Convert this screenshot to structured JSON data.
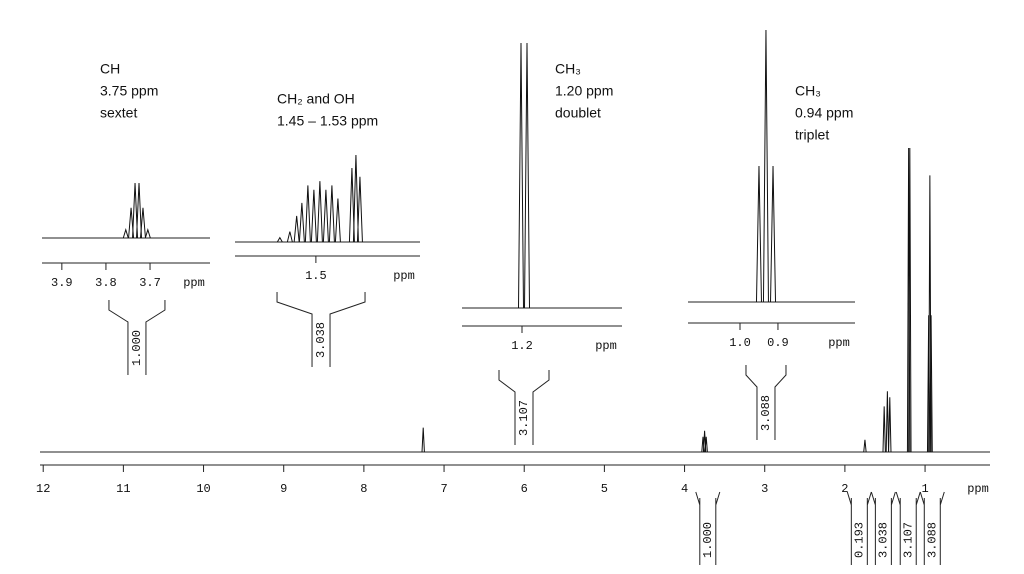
{
  "spectrum": {
    "axis_label": "ppm",
    "xlim": [
      12.04,
      0.19
    ],
    "xticks": [
      12,
      11,
      10,
      9,
      8,
      7,
      6,
      5,
      4,
      3,
      2,
      1
    ],
    "peaks": [
      {
        "x": 7.26,
        "height": 8
      },
      {
        "x": 3.77,
        "height": 5
      },
      {
        "x": 3.75,
        "height": 7
      },
      {
        "x": 3.73,
        "height": 5
      },
      {
        "x": 1.75,
        "height": 4
      },
      {
        "x": 1.51,
        "height": 15
      },
      {
        "x": 1.47,
        "height": 20
      },
      {
        "x": 1.44,
        "height": 18
      },
      {
        "x": 1.205,
        "height": 100
      },
      {
        "x": 1.19,
        "height": 100
      },
      {
        "x": 0.955,
        "height": 45
      },
      {
        "x": 0.94,
        "height": 91
      },
      {
        "x": 0.925,
        "height": 45
      }
    ],
    "integrals": [
      {
        "x": 3.71,
        "label": "1.000"
      },
      {
        "x": 1.82,
        "label": "0.193"
      },
      {
        "x": 1.52,
        "label": "3.038"
      },
      {
        "x": 1.21,
        "label": "3.107"
      },
      {
        "x": 0.91,
        "label": "3.088"
      }
    ]
  },
  "insets": [
    {
      "title": [
        "CH",
        "3.75 ppm",
        "sextet"
      ],
      "axis_label": "ppm",
      "xlim": [
        3.945,
        3.564
      ],
      "xticks": [
        3.9,
        3.8,
        3.7
      ],
      "integral": "1.000",
      "peaks": [
        {
          "x": 3.755,
          "height": 15
        },
        {
          "x": 3.743,
          "height": 55
        },
        {
          "x": 3.734,
          "height": 100
        },
        {
          "x": 3.725,
          "height": 100
        },
        {
          "x": 3.716,
          "height": 55
        },
        {
          "x": 3.705,
          "height": 15
        }
      ]
    },
    {
      "title": [
        "CH₂ and OH",
        "1.45 – 1.53 ppm"
      ],
      "axis_label": "ppm",
      "xlim": [
        1.601,
        1.37
      ],
      "xticks": [
        1.5
      ],
      "integral": "3.038",
      "peaks": [
        {
          "x": 1.545,
          "height": 5
        },
        {
          "x": 1.5325,
          "height": 12
        },
        {
          "x": 1.524,
          "height": 30
        },
        {
          "x": 1.5175,
          "height": 45
        },
        {
          "x": 1.51,
          "height": 65
        },
        {
          "x": 1.5025,
          "height": 60
        },
        {
          "x": 1.495,
          "height": 70
        },
        {
          "x": 1.4875,
          "height": 60
        },
        {
          "x": 1.48,
          "height": 65
        },
        {
          "x": 1.4725,
          "height": 50
        },
        {
          "x": 1.455,
          "height": 85
        },
        {
          "x": 1.45,
          "height": 100
        },
        {
          "x": 1.445,
          "height": 75
        }
      ]
    },
    {
      "title": [
        "CH₃",
        "1.20 ppm",
        "doublet"
      ],
      "axis_label": "ppm",
      "xlim": [
        1.35,
        0.95
      ],
      "xticks": [
        1.2
      ],
      "integral": "3.107",
      "peaks": [
        {
          "x": 1.2025,
          "height": 100
        },
        {
          "x": 1.1875,
          "height": 100
        }
      ]
    },
    {
      "title": [
        "CH₃",
        "0.94 ppm",
        "triplet"
      ],
      "axis_label": "ppm",
      "xlim": [
        1.137,
        0.697
      ],
      "xticks": [
        {
          "value": 1,
          "label": "1.0"
        },
        0.9
      ],
      "integral": "3.088",
      "peaks": [
        {
          "x": 0.95,
          "height": 50
        },
        {
          "x": 0.9316,
          "height": 100
        },
        {
          "x": 0.913,
          "height": 50
        }
      ]
    }
  ]
}
